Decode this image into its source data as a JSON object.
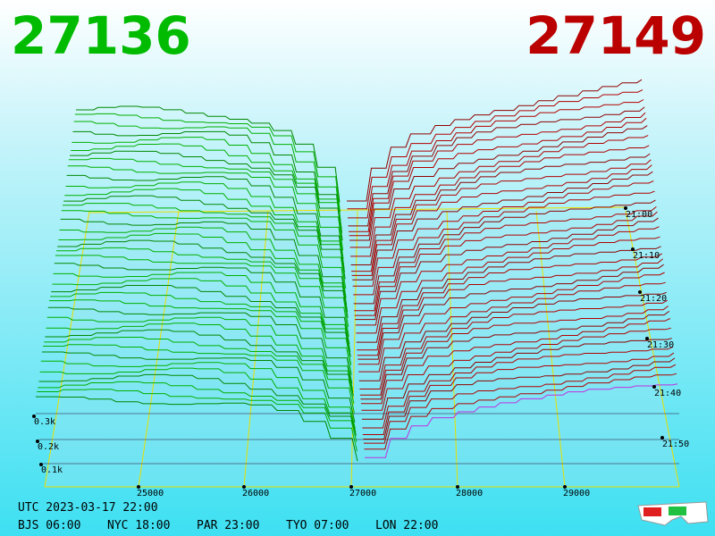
{
  "header": {
    "bid": "27136",
    "ask": "27149"
  },
  "price_axis": {
    "labels": [
      "25000",
      "26000",
      "27000",
      "28000",
      "29000"
    ]
  },
  "depth_axis": {
    "labels": [
      "0.1k",
      "0.2k",
      "0.3k"
    ]
  },
  "time_axis": {
    "labels": [
      "21:00",
      "21:10",
      "21:20",
      "21:30",
      "21:40",
      "21:50"
    ]
  },
  "footer": {
    "utc": "UTC 2023-03-17 22:00",
    "zones": [
      "BJS 06:00",
      "NYC 18:00",
      "PAR 23:00",
      "TYO 07:00",
      "LON 22:00"
    ]
  }
}
